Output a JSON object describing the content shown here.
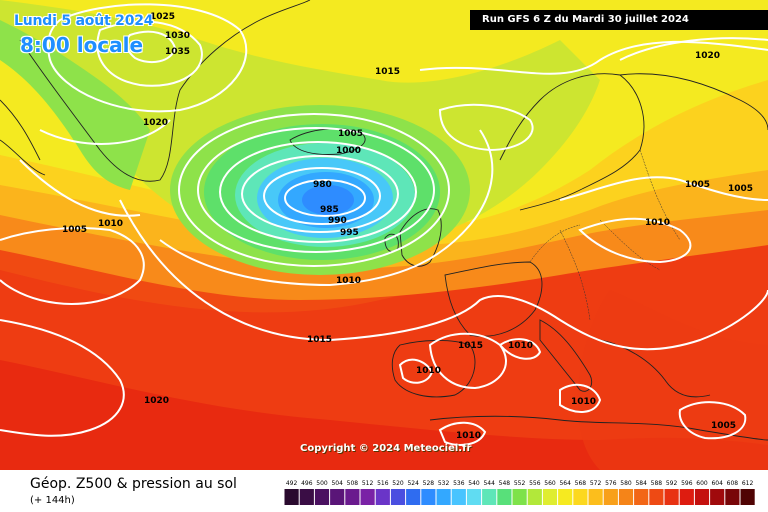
{
  "header": {
    "date_line": "Lundi 5 août 2024",
    "time_line": "8:00 locale",
    "run_info": "Run GFS 6 Z du Mardi 30 juillet 2024"
  },
  "map": {
    "copyright": "Copyright © 2024 Meteociel.fr",
    "isobar_color": "#ffffff",
    "isobar_labels": [
      {
        "key": "i1025",
        "text": "1025"
      },
      {
        "key": "i1030",
        "text": "1030"
      },
      {
        "key": "i1035",
        "text": "1035"
      },
      {
        "key": "i1020a",
        "text": "1020"
      },
      {
        "key": "i1015a",
        "text": "1015"
      },
      {
        "key": "i1020b",
        "text": "1020"
      },
      {
        "key": "i1005a",
        "text": "1005"
      },
      {
        "key": "i1000",
        "text": "1000"
      },
      {
        "key": "i980",
        "text": "980"
      },
      {
        "key": "i985",
        "text": "985"
      },
      {
        "key": "i990",
        "text": "990"
      },
      {
        "key": "i995",
        "text": "995"
      },
      {
        "key": "i1005b",
        "text": "1005"
      },
      {
        "key": "i1010a",
        "text": "1010"
      },
      {
        "key": "i1010b",
        "text": "1010"
      },
      {
        "key": "i1005c",
        "text": "1005"
      },
      {
        "key": "i1005d",
        "text": "1005"
      },
      {
        "key": "i1010c",
        "text": "1010"
      },
      {
        "key": "i1015b",
        "text": "1015"
      },
      {
        "key": "i1015c",
        "text": "1015"
      },
      {
        "key": "i1010d",
        "text": "1010"
      },
      {
        "key": "i1010e",
        "text": "1010"
      },
      {
        "key": "i1020c",
        "text": "1020"
      },
      {
        "key": "i1010f",
        "text": "1010"
      },
      {
        "key": "i1010g",
        "text": "1010"
      },
      {
        "key": "i1005e",
        "text": "1005"
      }
    ]
  },
  "legend": {
    "title": "Géop. Z500 & pression au sol",
    "subtitle": "(+ 144h)",
    "scale": [
      {
        "label": "492",
        "color": "#2a0a2e"
      },
      {
        "label": "496",
        "color": "#3a0d45"
      },
      {
        "label": "500",
        "color": "#4a1060"
      },
      {
        "label": "504",
        "color": "#5a1578"
      },
      {
        "label": "508",
        "color": "#6a1a8e"
      },
      {
        "label": "512",
        "color": "#7a22a6"
      },
      {
        "label": "516",
        "color": "#6a35c8"
      },
      {
        "label": "520",
        "color": "#4a4ee0"
      },
      {
        "label": "524",
        "color": "#2f6cf0"
      },
      {
        "label": "528",
        "color": "#2e8cff"
      },
      {
        "label": "532",
        "color": "#33a8ff"
      },
      {
        "label": "536",
        "color": "#48c4ff"
      },
      {
        "label": "540",
        "color": "#60dcf2"
      },
      {
        "label": "544",
        "color": "#5ee6b8"
      },
      {
        "label": "548",
        "color": "#58e07a"
      },
      {
        "label": "552",
        "color": "#7ee24a"
      },
      {
        "label": "556",
        "color": "#b2e83a"
      },
      {
        "label": "560",
        "color": "#dfed30"
      },
      {
        "label": "564",
        "color": "#f6ea20"
      },
      {
        "label": "568",
        "color": "#fcd81e"
      },
      {
        "label": "572",
        "color": "#fcbe1c"
      },
      {
        "label": "576",
        "color": "#f8a01a"
      },
      {
        "label": "580",
        "color": "#f58418"
      },
      {
        "label": "584",
        "color": "#f26616"
      },
      {
        "label": "588",
        "color": "#ee4a14"
      },
      {
        "label": "592",
        "color": "#e83212"
      },
      {
        "label": "596",
        "color": "#de1c10"
      },
      {
        "label": "600",
        "color": "#c4100e"
      },
      {
        "label": "604",
        "color": "#a00a0c"
      },
      {
        "label": "608",
        "color": "#780608"
      },
      {
        "label": "612",
        "color": "#500404"
      }
    ]
  }
}
